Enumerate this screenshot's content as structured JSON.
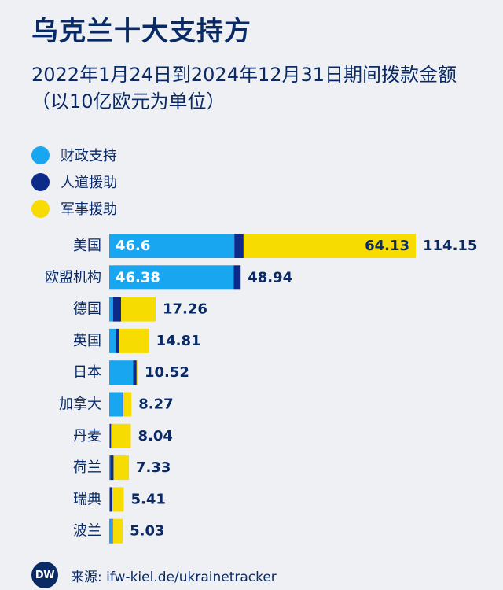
{
  "title": "乌克兰十大支持方",
  "subtitle": "2022年1月24日到2024年12月31日期间拨款金额（以10亿欧元为单位）",
  "colors": {
    "financial": "#19a6f0",
    "humanitarian": "#0c2a8a",
    "military": "#f7dc02",
    "text": "#0a2a66"
  },
  "footer": {
    "logo": "DW",
    "source": "来源: ifw-kiel.de/ukrainetracker"
  },
  "chart_data": {
    "type": "bar",
    "orientation": "horizontal",
    "stacked": true,
    "unit": "以10亿欧元为单位",
    "categories": [
      "美国",
      "欧盟机构",
      "德国",
      "英国",
      "日本",
      "加拿大",
      "丹麦",
      "荷兰",
      "瑞典",
      "波兰"
    ],
    "series": [
      {
        "name": "财政支持",
        "color": "#19a6f0",
        "values": [
          46.6,
          46.38,
          1.4,
          2.5,
          8.9,
          4.9,
          0.3,
          0.4,
          0.3,
          0.9
        ]
      },
      {
        "name": "人道援助",
        "color": "#0c2a8a",
        "values": [
          3.42,
          2.56,
          3.0,
          1.3,
          1.3,
          0.4,
          0.4,
          1.2,
          0.9,
          0.4
        ]
      },
      {
        "name": "军事援助",
        "color": "#f7dc02",
        "values": [
          64.13,
          0,
          12.86,
          11.01,
          0.32,
          2.97,
          7.34,
          5.73,
          4.21,
          3.73
        ]
      }
    ],
    "inline_labels": [
      {
        "category": "美国",
        "series": "财政支持",
        "text": "46.6"
      },
      {
        "category": "美国",
        "series": "军事援助",
        "text": "64.13"
      },
      {
        "category": "欧盟机构",
        "series": "财政支持",
        "text": "46.38"
      }
    ],
    "totals": [
      114.15,
      48.94,
      17.26,
      14.81,
      10.52,
      8.27,
      8.04,
      7.33,
      5.41,
      5.03
    ],
    "total_labels": [
      "114.15",
      "48.94",
      "17.26",
      "14.81",
      "10.52",
      "8.27",
      "8.04",
      "7.33",
      "5.41",
      "5.03"
    ],
    "xlim": [
      0,
      114.15
    ],
    "grid": false,
    "legend_placement": "top-left"
  }
}
